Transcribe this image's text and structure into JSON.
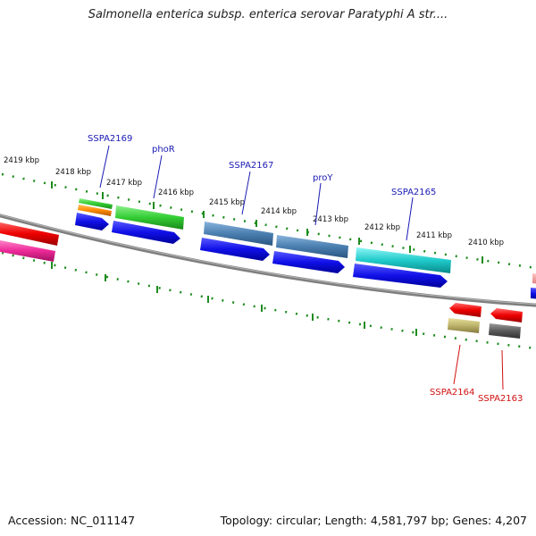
{
  "title": "Salmonella enterica subsp. enterica serovar Paratyphi A str....",
  "footer": {
    "accession": "Accession: NC_011147",
    "summary": "Topology: circular; Length: 4,581,797 bp; Genes: 4,207"
  },
  "colors": {
    "backbone": "#7f7f7f",
    "tick": "#1e8c1e",
    "top_label": "#1a1ab4",
    "bottom_label": "#d01010"
  },
  "scale_labels": [
    "2419 kbp",
    "2418 kbp",
    "2417 kbp",
    "2416 kbp",
    "2415 kbp",
    "2414 kbp",
    "2413 kbp",
    "2412 kbp",
    "2411 kbp",
    "2410 kbp"
  ],
  "gene_labels": {
    "top": [
      "SSPA2169",
      "phoR",
      "SSPA2167",
      "proY",
      "SSPA2165"
    ],
    "bottom": [
      "SSPA2164",
      "SSPA2163"
    ]
  }
}
